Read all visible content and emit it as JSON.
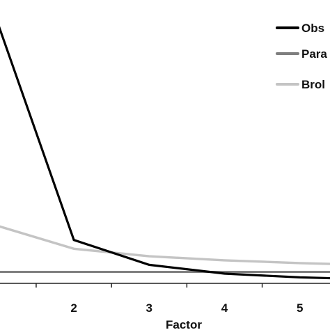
{
  "chart_data": {
    "type": "line",
    "xlabel": "Factor",
    "ylabel": "",
    "title": "",
    "x": [
      1,
      2,
      3,
      4,
      5,
      6
    ],
    "xticks": [
      2,
      3,
      4,
      5
    ],
    "xlim": [
      1.02,
      5.4
    ],
    "ylim": [
      0,
      1
    ],
    "grid": false,
    "legend_position": "top-right",
    "series": [
      {
        "name": "Obs",
        "color": "#000000",
        "values": [
          1.0,
          0.145,
          0.046,
          0.011,
          -0.004,
          -0.012
        ]
      },
      {
        "name": "Para",
        "color": "#7f7f7f",
        "values": [
          0.018,
          0.018,
          0.018,
          0.018,
          0.018,
          0.018
        ]
      },
      {
        "name": "Brol",
        "color": "#c4c4c4",
        "values": [
          0.2,
          0.11,
          0.08,
          0.064,
          0.053,
          0.045
        ]
      }
    ]
  }
}
